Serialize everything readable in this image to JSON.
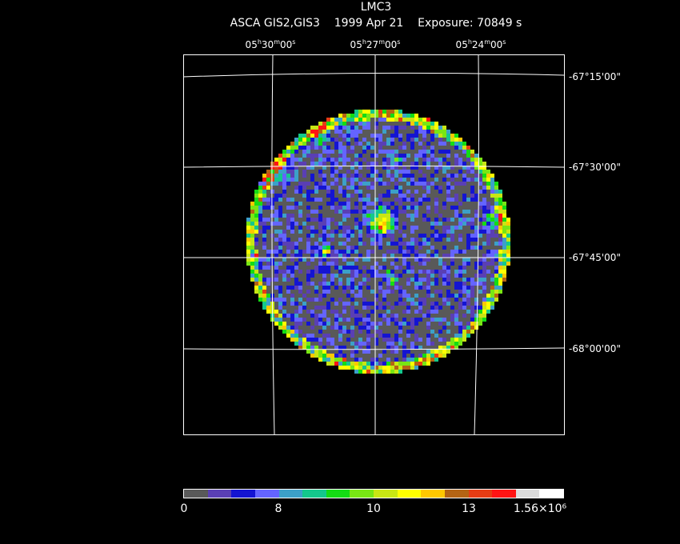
{
  "title": {
    "object": "LMC3",
    "instrument": "ASCA GIS2,GIS3",
    "date": "1999 Apr 21",
    "exposure": "Exposure: 70849 s"
  },
  "ra_labels": [
    "05h30m00s",
    "05h27m00s",
    "05h24m00s"
  ],
  "dec_labels": [
    "-67°15'00\"",
    "-67°30'00\"",
    "-67°45'00\"",
    "-68°00'00\""
  ],
  "colorbar": {
    "colors": [
      "#595959",
      "#5a3fb4",
      "#1414d2",
      "#6464ff",
      "#3ca0c8",
      "#14c88c",
      "#14dc14",
      "#78e614",
      "#c8e614",
      "#ffff00",
      "#ffc800",
      "#b46414",
      "#e63c14",
      "#ff1414",
      "#dcdcdc",
      "#ffffff"
    ],
    "ticks": [
      "0",
      "8",
      "10",
      "13",
      "1.56×10⁶"
    ]
  }
}
